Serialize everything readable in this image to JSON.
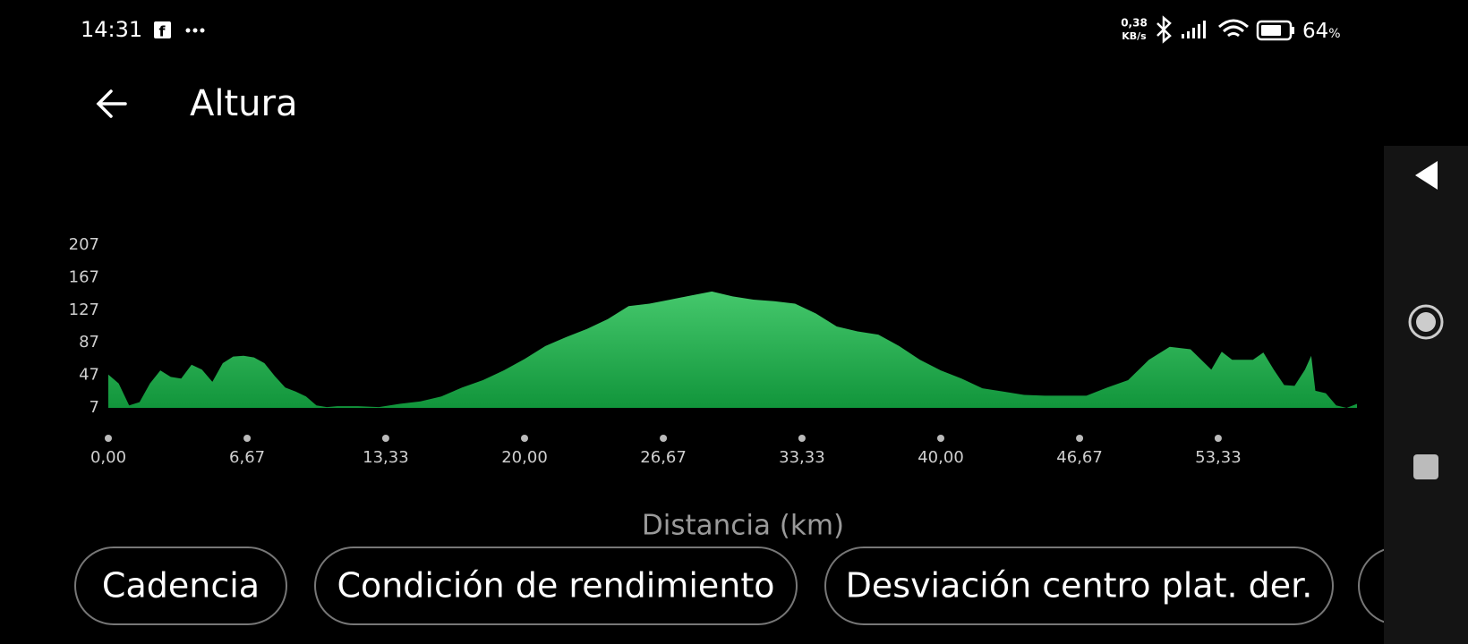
{
  "status_bar": {
    "time": "14:31",
    "speed_value": "0,38",
    "speed_unit": "KB/s",
    "battery": "64",
    "battery_unit": "%"
  },
  "header": {
    "title": "Altura"
  },
  "chart_data": {
    "type": "area",
    "color": "#2db555",
    "x": [
      0,
      0.5,
      1,
      1.5,
      2,
      2.5,
      3,
      3.5,
      4,
      4.5,
      5,
      5.5,
      6,
      6.5,
      7,
      7.5,
      8,
      8.5,
      9,
      9.5,
      10,
      10.5,
      11,
      12,
      13,
      14,
      15,
      16,
      17,
      18,
      19,
      20,
      21,
      22,
      23,
      24,
      25,
      26,
      27,
      28,
      29,
      30,
      31,
      32,
      33,
      34,
      35,
      36,
      37,
      38,
      39,
      40,
      41,
      42,
      43,
      44,
      45,
      46,
      47,
      48,
      49,
      50,
      51,
      52,
      53,
      53.5,
      54,
      55,
      55.5,
      56,
      56.5,
      57,
      57.5,
      57.8,
      58,
      58.5,
      59,
      59.5,
      60
    ],
    "values": [
      48,
      37,
      10,
      14,
      37,
      53,
      45,
      43,
      60,
      54,
      39,
      62,
      70,
      71,
      69,
      62,
      46,
      32,
      27,
      21,
      10,
      8,
      9,
      9,
      8,
      12,
      15,
      21,
      32,
      41,
      53,
      67,
      83,
      94,
      104,
      116,
      132,
      135,
      140,
      145,
      150,
      144,
      140,
      138,
      135,
      123,
      107,
      101,
      97,
      83,
      66,
      53,
      43,
      31,
      27,
      23,
      22,
      22,
      22,
      32,
      41,
      66,
      82,
      79,
      54,
      76,
      66,
      66,
      75,
      54,
      35,
      34,
      54,
      71,
      28,
      25,
      10,
      7,
      12
    ],
    "xlim": [
      0,
      60
    ],
    "ylim": [
      7,
      207
    ],
    "yticks": [
      7,
      47,
      87,
      127,
      167,
      207
    ],
    "xticks": [
      {
        "value": 0,
        "label": "0,00"
      },
      {
        "value": 6.67,
        "label": "6,67"
      },
      {
        "value": 13.33,
        "label": "13,33"
      },
      {
        "value": 20,
        "label": "20,00"
      },
      {
        "value": 26.67,
        "label": "26,67"
      },
      {
        "value": 33.33,
        "label": "33,33"
      },
      {
        "value": 40,
        "label": "40,00"
      },
      {
        "value": 46.67,
        "label": "46,67"
      },
      {
        "value": 53.33,
        "label": "53,33"
      }
    ],
    "x_label": "Distancia (km)"
  },
  "chips": [
    "Cadencia",
    "Condición de rendimiento",
    "Desviación centro plat. der."
  ]
}
